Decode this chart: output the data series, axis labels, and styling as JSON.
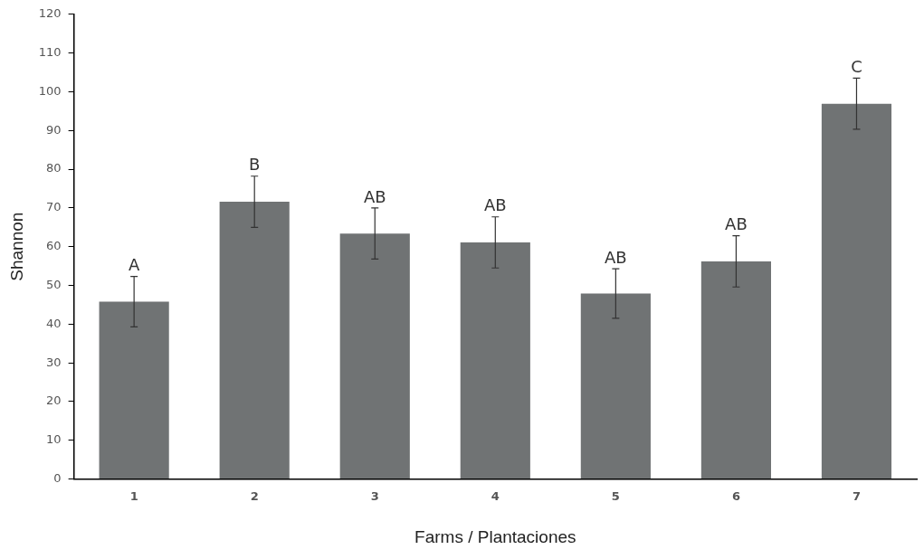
{
  "chart_data": {
    "type": "bar",
    "xlabel": "Farms / Plantaciones",
    "ylabel": "Shannon",
    "categories": [
      "1",
      "2",
      "3",
      "4",
      "5",
      "6",
      "7"
    ],
    "values": [
      45.8,
      71.6,
      63.4,
      61.1,
      47.9,
      56.2,
      96.9
    ],
    "errors": [
      6.5,
      6.6,
      6.6,
      6.6,
      6.4,
      6.6,
      6.6
    ],
    "color": "#707374",
    "ylim": [
      0,
      120
    ],
    "yticks": [
      0,
      10,
      20,
      30,
      40,
      50,
      60,
      70,
      80,
      90,
      100,
      110,
      120
    ],
    "grid": false,
    "annotations": [
      {
        "text": "A",
        "x": "1",
        "y": 52.3
      },
      {
        "text": "B",
        "x": "2",
        "y": 78.2
      },
      {
        "text": "AB",
        "x": "3",
        "y": 70
      },
      {
        "text": "AB",
        "x": "4",
        "y": 67.8
      },
      {
        "text": "AB",
        "x": "5",
        "y": 54.3
      },
      {
        "text": "AB",
        "x": "6",
        "y": 62.9
      },
      {
        "text": "C",
        "x": "7",
        "y": 103.5
      }
    ]
  }
}
